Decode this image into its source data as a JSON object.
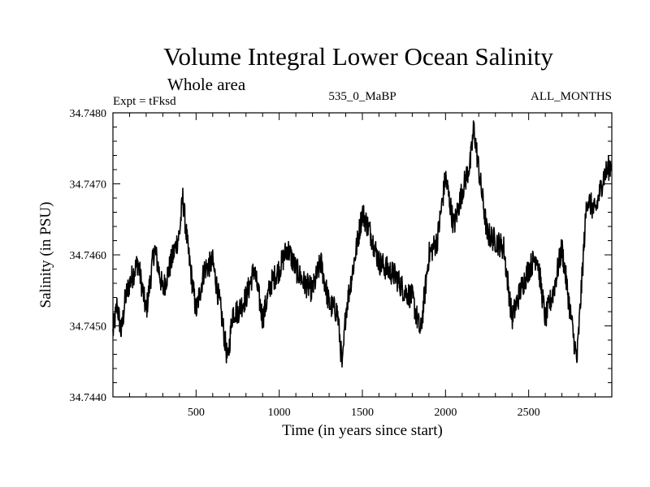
{
  "chart_data": {
    "type": "line",
    "title": "Volume Integral Lower Ocean Salinity",
    "subtitle": "Whole area",
    "expt_label": "Expt = tFksd",
    "run_label": "535_0_MaBP",
    "months_label": "ALL_MONTHS",
    "xlabel": "Time (in years since start)",
    "ylabel": "Salinity (in PSU)",
    "xlim": [
      0,
      3000
    ],
    "ylim": [
      34.744,
      34.748
    ],
    "xticks": [
      500,
      1000,
      1500,
      2000,
      2500
    ],
    "xtick_labels": [
      "500",
      "1000",
      "1500",
      "2000",
      "2500"
    ],
    "yticks": [
      34.744,
      34.745,
      34.746,
      34.747,
      34.748
    ],
    "ytick_labels": [
      "34.7440",
      "34.7450",
      "34.7460",
      "34.7470",
      "34.7480"
    ],
    "series": [
      {
        "name": "Salinity",
        "color": "#000000",
        "x": [
          0,
          25,
          50,
          75,
          100,
          150,
          200,
          250,
          300,
          350,
          400,
          420,
          450,
          500,
          550,
          600,
          650,
          690,
          720,
          750,
          800,
          850,
          900,
          950,
          1000,
          1050,
          1100,
          1150,
          1200,
          1250,
          1300,
          1350,
          1380,
          1400,
          1450,
          1500,
          1550,
          1600,
          1650,
          1700,
          1750,
          1800,
          1850,
          1900,
          1950,
          2000,
          2050,
          2100,
          2150,
          2170,
          2200,
          2250,
          2300,
          2350,
          2400,
          2450,
          2500,
          2550,
          2600,
          2650,
          2700,
          2750,
          2790,
          2850,
          2900,
          2950,
          3000
        ],
        "values": [
          34.7449,
          34.7453,
          34.7449,
          34.7454,
          34.7456,
          34.7459,
          34.7452,
          34.7461,
          34.7455,
          34.7459,
          34.7463,
          34.7468,
          34.7461,
          34.7452,
          34.7458,
          34.7459,
          34.7452,
          34.7445,
          34.7452,
          34.7452,
          34.7454,
          34.7458,
          34.7451,
          34.7456,
          34.7458,
          34.7461,
          34.7458,
          34.7456,
          34.7455,
          34.7459,
          34.7453,
          34.7452,
          34.7444,
          34.7452,
          34.7459,
          34.7466,
          34.7463,
          34.7459,
          34.7458,
          34.7457,
          34.7455,
          34.7454,
          34.7449,
          34.746,
          34.7462,
          34.7471,
          34.7464,
          34.7469,
          34.7473,
          34.7478,
          34.7472,
          34.7463,
          34.7462,
          34.7461,
          34.7451,
          34.7455,
          34.7458,
          34.746,
          34.7451,
          34.7455,
          34.7461,
          34.7452,
          34.7445,
          34.7468,
          34.7466,
          34.7471,
          34.7473
        ]
      }
    ]
  }
}
